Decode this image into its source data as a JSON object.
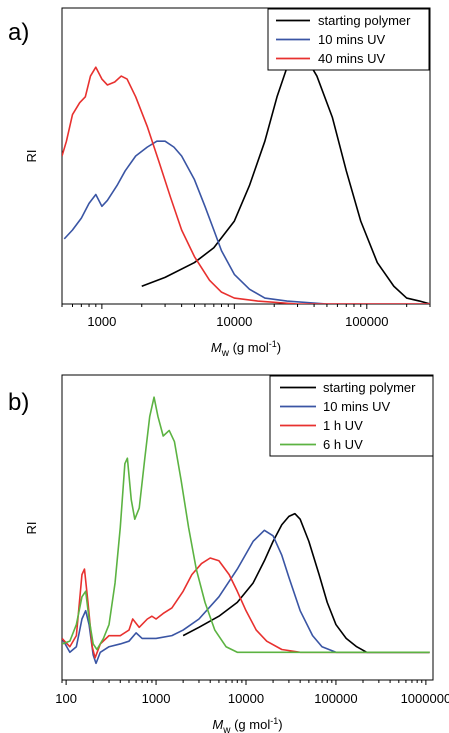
{
  "chart_data": [
    {
      "panel": "a)",
      "type": "line",
      "xscale": "log",
      "xlim": [
        500,
        300000
      ],
      "ylim": [
        0,
        1.0
      ],
      "xlabel": "M",
      "xlabel_sub": "w",
      "xlabel_units": " (g mol",
      "xlabel_units_sup": "-1",
      "xlabel_units_close": ")",
      "ylabel": "RI",
      "xticks": [
        1000,
        10000,
        100000
      ],
      "xtick_labels": [
        "1000",
        "10000",
        "100000"
      ],
      "grid": false,
      "legend_position": "top-right",
      "series": [
        {
          "name": "starting polymer",
          "color": "#000000",
          "points": [
            [
              2000,
              0.06
            ],
            [
              3000,
              0.09
            ],
            [
              5000,
              0.14
            ],
            [
              7000,
              0.19
            ],
            [
              10000,
              0.28
            ],
            [
              13000,
              0.4
            ],
            [
              17000,
              0.55
            ],
            [
              21000,
              0.7
            ],
            [
              25000,
              0.8
            ],
            [
              30000,
              0.85
            ],
            [
              35000,
              0.83
            ],
            [
              42000,
              0.77
            ],
            [
              55000,
              0.63
            ],
            [
              70000,
              0.45
            ],
            [
              90000,
              0.28
            ],
            [
              120000,
              0.14
            ],
            [
              160000,
              0.06
            ],
            [
              200000,
              0.02
            ],
            [
              250000,
              0.01
            ],
            [
              300000,
              0.0
            ]
          ]
        },
        {
          "name": "10 mins UV",
          "color": "#3a55a4",
          "points": [
            [
              520,
              0.22
            ],
            [
              600,
              0.25
            ],
            [
              700,
              0.29
            ],
            [
              800,
              0.34
            ],
            [
              900,
              0.37
            ],
            [
              1000,
              0.33
            ],
            [
              1100,
              0.35
            ],
            [
              1300,
              0.4
            ],
            [
              1500,
              0.45
            ],
            [
              1800,
              0.5
            ],
            [
              2200,
              0.53
            ],
            [
              2600,
              0.55
            ],
            [
              3000,
              0.55
            ],
            [
              3500,
              0.53
            ],
            [
              4000,
              0.5
            ],
            [
              5000,
              0.42
            ],
            [
              6000,
              0.33
            ],
            [
              7000,
              0.25
            ],
            [
              8000,
              0.18
            ],
            [
              10000,
              0.1
            ],
            [
              13000,
              0.05
            ],
            [
              17000,
              0.02
            ],
            [
              25000,
              0.01
            ],
            [
              50000,
              0.0
            ],
            [
              100000,
              0.0
            ],
            [
              300000,
              0.0
            ]
          ]
        },
        {
          "name": "40 mins UV",
          "color": "#e8312f",
          "points": [
            [
              500,
              0.5
            ],
            [
              540,
              0.55
            ],
            [
              600,
              0.64
            ],
            [
              680,
              0.68
            ],
            [
              750,
              0.7
            ],
            [
              820,
              0.77
            ],
            [
              900,
              0.8
            ],
            [
              1000,
              0.76
            ],
            [
              1100,
              0.74
            ],
            [
              1250,
              0.75
            ],
            [
              1400,
              0.77
            ],
            [
              1550,
              0.76
            ],
            [
              1800,
              0.7
            ],
            [
              2200,
              0.6
            ],
            [
              2700,
              0.48
            ],
            [
              3300,
              0.36
            ],
            [
              4000,
              0.25
            ],
            [
              5000,
              0.16
            ],
            [
              6500,
              0.08
            ],
            [
              8000,
              0.04
            ],
            [
              10000,
              0.02
            ],
            [
              15000,
              0.01
            ],
            [
              30000,
              0.0
            ],
            [
              100000,
              0.0
            ],
            [
              300000,
              0.0
            ]
          ]
        }
      ]
    },
    {
      "panel": "b)",
      "type": "line",
      "xscale": "log",
      "xlim": [
        90,
        1200000
      ],
      "ylim": [
        -0.1,
        1.0
      ],
      "xlabel": "M",
      "xlabel_sub": "w",
      "xlabel_units": " (g mol",
      "xlabel_units_sup": "-1",
      "xlabel_units_close": ")",
      "ylabel": "RI",
      "xticks": [
        100,
        1000,
        10000,
        100000,
        1000000
      ],
      "xtick_labels": [
        "100",
        "1000",
        "10000",
        "100000",
        "1000000"
      ],
      "grid": false,
      "legend_position": "top-right",
      "series": [
        {
          "name": "starting polymer",
          "color": "#000000",
          "points": [
            [
              2000,
              0.06
            ],
            [
              3000,
              0.09
            ],
            [
              5000,
              0.13
            ],
            [
              8000,
              0.18
            ],
            [
              12000,
              0.25
            ],
            [
              16000,
              0.33
            ],
            [
              20000,
              0.4
            ],
            [
              25000,
              0.46
            ],
            [
              30000,
              0.49
            ],
            [
              35000,
              0.5
            ],
            [
              40000,
              0.48
            ],
            [
              50000,
              0.4
            ],
            [
              65000,
              0.28
            ],
            [
              80000,
              0.18
            ],
            [
              100000,
              0.1
            ],
            [
              130000,
              0.05
            ],
            [
              170000,
              0.02
            ],
            [
              220000,
              0.0
            ],
            [
              500000,
              0.0
            ],
            [
              1100000,
              0.0
            ]
          ]
        },
        {
          "name": "10 mins UV",
          "color": "#3a55a4",
          "points": [
            [
              90,
              0.05
            ],
            [
              110,
              0.0
            ],
            [
              130,
              0.02
            ],
            [
              150,
              0.12
            ],
            [
              165,
              0.15
            ],
            [
              180,
              0.1
            ],
            [
              200,
              -0.01
            ],
            [
              215,
              -0.04
            ],
            [
              240,
              0.0
            ],
            [
              300,
              0.02
            ],
            [
              400,
              0.03
            ],
            [
              500,
              0.04
            ],
            [
              600,
              0.07
            ],
            [
              700,
              0.05
            ],
            [
              1000,
              0.05
            ],
            [
              1500,
              0.06
            ],
            [
              2000,
              0.08
            ],
            [
              3000,
              0.12
            ],
            [
              5000,
              0.2
            ],
            [
              8000,
              0.3
            ],
            [
              12000,
              0.4
            ],
            [
              16000,
              0.44
            ],
            [
              20000,
              0.42
            ],
            [
              25000,
              0.35
            ],
            [
              30000,
              0.27
            ],
            [
              40000,
              0.15
            ],
            [
              55000,
              0.06
            ],
            [
              70000,
              0.02
            ],
            [
              100000,
              0.0
            ],
            [
              1100000,
              0.0
            ]
          ]
        },
        {
          "name": "1 h UV",
          "color": "#e8312f",
          "points": [
            [
              90,
              0.05
            ],
            [
              110,
              0.02
            ],
            [
              130,
              0.06
            ],
            [
              150,
              0.28
            ],
            [
              160,
              0.3
            ],
            [
              175,
              0.18
            ],
            [
              195,
              0.02
            ],
            [
              210,
              -0.02
            ],
            [
              240,
              0.03
            ],
            [
              300,
              0.06
            ],
            [
              400,
              0.06
            ],
            [
              500,
              0.08
            ],
            [
              550,
              0.12
            ],
            [
              650,
              0.09
            ],
            [
              800,
              0.12
            ],
            [
              900,
              0.13
            ],
            [
              1000,
              0.12
            ],
            [
              1200,
              0.14
            ],
            [
              1500,
              0.16
            ],
            [
              2000,
              0.22
            ],
            [
              2500,
              0.28
            ],
            [
              3200,
              0.32
            ],
            [
              4000,
              0.34
            ],
            [
              5000,
              0.33
            ],
            [
              6500,
              0.28
            ],
            [
              8000,
              0.22
            ],
            [
              10000,
              0.15
            ],
            [
              13000,
              0.08
            ],
            [
              17000,
              0.04
            ],
            [
              25000,
              0.01
            ],
            [
              40000,
              0.0
            ],
            [
              1100000,
              0.0
            ]
          ]
        },
        {
          "name": "6 h UV",
          "color": "#5cb342",
          "points": [
            [
              90,
              0.03
            ],
            [
              110,
              0.04
            ],
            [
              130,
              0.1
            ],
            [
              150,
              0.2
            ],
            [
              165,
              0.22
            ],
            [
              180,
              0.12
            ],
            [
              200,
              0.03
            ],
            [
              220,
              0.01
            ],
            [
              260,
              0.05
            ],
            [
              300,
              0.1
            ],
            [
              350,
              0.25
            ],
            [
              400,
              0.45
            ],
            [
              450,
              0.68
            ],
            [
              480,
              0.7
            ],
            [
              530,
              0.55
            ],
            [
              580,
              0.48
            ],
            [
              650,
              0.52
            ],
            [
              750,
              0.7
            ],
            [
              850,
              0.85
            ],
            [
              950,
              0.92
            ],
            [
              1050,
              0.85
            ],
            [
              1200,
              0.78
            ],
            [
              1400,
              0.8
            ],
            [
              1600,
              0.76
            ],
            [
              1900,
              0.62
            ],
            [
              2300,
              0.45
            ],
            [
              2800,
              0.3
            ],
            [
              3500,
              0.18
            ],
            [
              4500,
              0.08
            ],
            [
              6000,
              0.02
            ],
            [
              8000,
              0.0
            ],
            [
              20000,
              0.0
            ],
            [
              1100000,
              0.0
            ]
          ]
        }
      ]
    }
  ]
}
